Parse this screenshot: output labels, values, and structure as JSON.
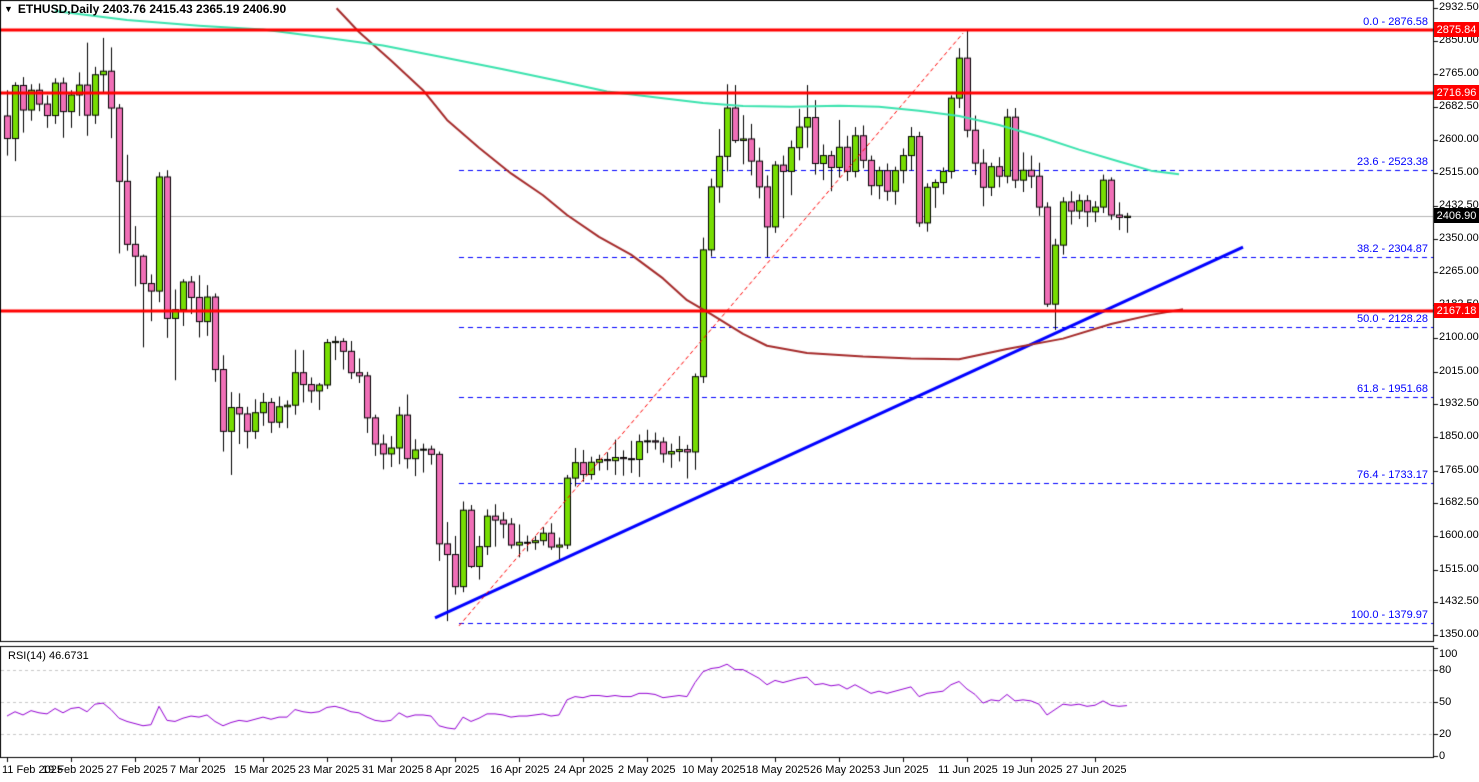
{
  "header": {
    "title": "ETHUSD,Daily 2403.76 2415.43 2365.19 2406.90",
    "symbol": "ETHUSD",
    "timeframe": "Daily"
  },
  "rsi": {
    "label": "RSI(14) 46.6731",
    "period": 14,
    "value": "46.6731"
  },
  "chart_data": {
    "type": "candlestick",
    "title": "ETHUSD,Daily",
    "ohlc_display": {
      "open": "2403.76",
      "high": "2415.43",
      "low": "2365.19",
      "close": "2406.90"
    },
    "colors": {
      "bull": "#77DD02",
      "bear": "#F06FB7",
      "outline": "#000000",
      "red_line": "#FF0000",
      "blue": "#0000FF",
      "teal_ma": "#3BE3AE",
      "darkred_ma": "#A52A2A",
      "rsi_line": "#9400D3",
      "grid": "#C8C8C8",
      "current_price_line": "#B3B3B3",
      "box_black": "#000000"
    },
    "price_axis": {
      "ticks": [
        "2932.50",
        "2850.00",
        "2765.00",
        "2682.50",
        "2600.00",
        "2515.00",
        "2432.50",
        "2350.00",
        "2265.00",
        "2182.50",
        "2100.00",
        "2015.00",
        "1932.50",
        "1850.00",
        "1765.00",
        "1682.50",
        "1600.00",
        "1515.00",
        "1432.50",
        "1350.00"
      ],
      "highlights": [
        {
          "value": "2875.84",
          "bg": "#FF0000"
        },
        {
          "value": "2716.96",
          "bg": "#FF0000"
        },
        {
          "value": "2406.90",
          "bg": "#000000"
        },
        {
          "value": "2167.18",
          "bg": "#FF0000"
        }
      ],
      "range_top": 2932.5,
      "range_bottom": 1350.0
    },
    "date_axis": {
      "labels": [
        {
          "label": "11 Feb 2025",
          "bar": 0
        },
        {
          "label": "19 Feb 2025",
          "bar": 8
        },
        {
          "label": "27 Feb 2025",
          "bar": 16
        },
        {
          "label": "7 Mar 2025",
          "bar": 24
        },
        {
          "label": "15 Mar 2025",
          "bar": 32
        },
        {
          "label": "23 Mar 2025",
          "bar": 40
        },
        {
          "label": "31 Mar 2025",
          "bar": 48
        },
        {
          "label": "8 Apr 2025",
          "bar": 56
        },
        {
          "label": "16 Apr 2025",
          "bar": 64
        },
        {
          "label": "24 Apr 2025",
          "bar": 72
        },
        {
          "label": "2 May 2025",
          "bar": 80
        },
        {
          "label": "10 May 2025",
          "bar": 88
        },
        {
          "label": "18 May 2025",
          "bar": 96
        },
        {
          "label": "26 May 2025",
          "bar": 104
        },
        {
          "label": "3 Jun 2025",
          "bar": 112
        },
        {
          "label": "11 Jun 2025",
          "bar": 120
        },
        {
          "label": "19 Jun 2025",
          "bar": 128
        },
        {
          "label": "27 Jun 2025",
          "bar": 136
        }
      ]
    },
    "horizontal_lines": [
      2875.84,
      2716.96,
      2167.18
    ],
    "current_price": 2406.9,
    "fibonacci": [
      {
        "label": "0.0 - 2876.58",
        "price": 2876.58
      },
      {
        "label": "23.6 - 2523.38",
        "price": 2523.38
      },
      {
        "label": "38.2 - 2304.87",
        "price": 2304.87
      },
      {
        "label": "50.0 - 2128.28",
        "price": 2128.28
      },
      {
        "label": "61.8 - 1951.68",
        "price": 1951.68
      },
      {
        "label": "76.4 - 1733.17",
        "price": 1733.17
      },
      {
        "label": "100.0 - 1379.97",
        "price": 1379.97
      }
    ],
    "fib_x_start_bar": 56.5,
    "trendline_blue": {
      "x1_bar": 53.5,
      "p1": 1393,
      "x2_bar": 154.5,
      "p2": 2329
    },
    "trendline_red_dashed": {
      "x1_bar": 56.5,
      "p1": 1373,
      "x2_bar": 119.5,
      "p2": 2869
    },
    "ma_teal": [
      [
        6,
        2925
      ],
      [
        15,
        2902
      ],
      [
        24,
        2888
      ],
      [
        32,
        2878
      ],
      [
        39,
        2860
      ],
      [
        47,
        2838
      ],
      [
        54,
        2810
      ],
      [
        62,
        2778
      ],
      [
        69,
        2748
      ],
      [
        75,
        2722
      ],
      [
        82,
        2705
      ],
      [
        87,
        2693
      ],
      [
        92,
        2685
      ],
      [
        98,
        2683
      ],
      [
        104,
        2686
      ],
      [
        109,
        2683
      ],
      [
        114,
        2673
      ],
      [
        119,
        2660
      ],
      [
        124,
        2637
      ],
      [
        129,
        2608
      ],
      [
        134,
        2575
      ],
      [
        139,
        2545
      ],
      [
        143,
        2522
      ],
      [
        146.5,
        2513
      ]
    ],
    "ma_darkred": [
      [
        41.2,
        2932
      ],
      [
        44,
        2872
      ],
      [
        48,
        2800
      ],
      [
        52,
        2725
      ],
      [
        55,
        2650
      ],
      [
        59,
        2580
      ],
      [
        63,
        2515
      ],
      [
        67,
        2460
      ],
      [
        70,
        2410
      ],
      [
        74,
        2355
      ],
      [
        78,
        2310
      ],
      [
        82,
        2250
      ],
      [
        85,
        2195
      ],
      [
        88,
        2160
      ],
      [
        92,
        2110
      ],
      [
        95,
        2080
      ],
      [
        100,
        2062
      ],
      [
        107,
        2053
      ],
      [
        113,
        2048
      ],
      [
        119,
        2046
      ],
      [
        125,
        2072
      ],
      [
        132,
        2098
      ],
      [
        138,
        2135
      ],
      [
        143,
        2158
      ],
      [
        147,
        2172
      ]
    ],
    "candles": [
      [
        2660,
        2725,
        2560,
        2603
      ],
      [
        2603,
        2745,
        2546,
        2737
      ],
      [
        2737,
        2758,
        2618,
        2675
      ],
      [
        2675,
        2740,
        2648,
        2725
      ],
      [
        2725,
        2742,
        2672,
        2690
      ],
      [
        2690,
        2712,
        2630,
        2661
      ],
      [
        2661,
        2755,
        2640,
        2743
      ],
      [
        2743,
        2757,
        2605,
        2671
      ],
      [
        2671,
        2725,
        2630,
        2713
      ],
      [
        2713,
        2770,
        2660,
        2738
      ],
      [
        2738,
        2845,
        2610,
        2662
      ],
      [
        2662,
        2784,
        2640,
        2764
      ],
      [
        2764,
        2857,
        2720,
        2773
      ],
      [
        2773,
        2833,
        2604,
        2680
      ],
      [
        2680,
        2690,
        2313,
        2495
      ],
      [
        2495,
        2562,
        2320,
        2336
      ],
      [
        2336,
        2382,
        2230,
        2306
      ],
      [
        2306,
        2310,
        2076,
        2237
      ],
      [
        2237,
        2260,
        2142,
        2218
      ],
      [
        2218,
        2518,
        2190,
        2506
      ],
      [
        2506,
        2523,
        2100,
        2149
      ],
      [
        2149,
        2222,
        1993,
        2171
      ],
      [
        2171,
        2248,
        2130,
        2241
      ],
      [
        2241,
        2256,
        2160,
        2202
      ],
      [
        2202,
        2258,
        2101,
        2141
      ],
      [
        2141,
        2233,
        2105,
        2203
      ],
      [
        2203,
        2212,
        1989,
        2020
      ],
      [
        2020,
        2056,
        1813,
        1864
      ],
      [
        1864,
        1963,
        1754,
        1924
      ],
      [
        1924,
        1960,
        1832,
        1908
      ],
      [
        1908,
        1926,
        1821,
        1864
      ],
      [
        1864,
        1945,
        1845,
        1911
      ],
      [
        1911,
        1961,
        1878,
        1937
      ],
      [
        1937,
        1948,
        1860,
        1887
      ],
      [
        1887,
        1952,
        1873,
        1926
      ],
      [
        1926,
        1942,
        1872,
        1930
      ],
      [
        1930,
        2070,
        1906,
        2012
      ],
      [
        2012,
        2069,
        1937,
        1982
      ],
      [
        1982,
        2000,
        1936,
        1966
      ],
      [
        1966,
        1986,
        1918,
        1981
      ],
      [
        1981,
        2097,
        1971,
        2088
      ],
      [
        2088,
        2104,
        2044,
        2091
      ],
      [
        2091,
        2099,
        2020,
        2066
      ],
      [
        2066,
        2092,
        1996,
        2012
      ],
      [
        2012,
        2048,
        1986,
        2004
      ],
      [
        2004,
        2014,
        1860,
        1898
      ],
      [
        1898,
        1906,
        1802,
        1832
      ],
      [
        1832,
        1856,
        1768,
        1807
      ],
      [
        1807,
        1852,
        1774,
        1822
      ],
      [
        1822,
        1926,
        1781,
        1905
      ],
      [
        1905,
        1957,
        1770,
        1795
      ],
      [
        1795,
        1844,
        1751,
        1817
      ],
      [
        1817,
        1833,
        1760,
        1819
      ],
      [
        1819,
        1828,
        1780,
        1806
      ],
      [
        1806,
        1813,
        1537,
        1580
      ],
      [
        1580,
        1635,
        1385,
        1553
      ],
      [
        1553,
        1600,
        1452,
        1472
      ],
      [
        1472,
        1687,
        1458,
        1665
      ],
      [
        1665,
        1678,
        1519,
        1523
      ],
      [
        1523,
        1600,
        1490,
        1573
      ],
      [
        1573,
        1667,
        1552,
        1650
      ],
      [
        1650,
        1680,
        1573,
        1640
      ],
      [
        1640,
        1660,
        1594,
        1630
      ],
      [
        1630,
        1645,
        1568,
        1577
      ],
      [
        1577,
        1629,
        1546,
        1584
      ],
      [
        1584,
        1601,
        1561,
        1583
      ],
      [
        1583,
        1600,
        1565,
        1588
      ],
      [
        1588,
        1622,
        1576,
        1607
      ],
      [
        1607,
        1632,
        1565,
        1572
      ],
      [
        1572,
        1596,
        1540,
        1577
      ],
      [
        1577,
        1754,
        1567,
        1746
      ],
      [
        1746,
        1822,
        1725,
        1785
      ],
      [
        1785,
        1817,
        1737,
        1755
      ],
      [
        1755,
        1800,
        1742,
        1786
      ],
      [
        1786,
        1805,
        1765,
        1793
      ],
      [
        1793,
        1811,
        1766,
        1790
      ],
      [
        1790,
        1843,
        1754,
        1798
      ],
      [
        1798,
        1816,
        1752,
        1795
      ],
      [
        1795,
        1840,
        1759,
        1793
      ],
      [
        1793,
        1856,
        1749,
        1838
      ],
      [
        1838,
        1868,
        1809,
        1840
      ],
      [
        1840,
        1861,
        1818,
        1837
      ],
      [
        1837,
        1849,
        1785,
        1807
      ],
      [
        1807,
        1833,
        1772,
        1813
      ],
      [
        1813,
        1852,
        1788,
        1818
      ],
      [
        1818,
        1830,
        1745,
        1812
      ],
      [
        1812,
        2010,
        1767,
        2002
      ],
      [
        2002,
        2353,
        1986,
        2322
      ],
      [
        2322,
        2502,
        2305,
        2481
      ],
      [
        2481,
        2627,
        2441,
        2558
      ],
      [
        2558,
        2740,
        2520,
        2680
      ],
      [
        2680,
        2738,
        2592,
        2598
      ],
      [
        2598,
        2662,
        2538,
        2602
      ],
      [
        2602,
        2640,
        2510,
        2546
      ],
      [
        2546,
        2580,
        2452,
        2481
      ],
      [
        2481,
        2510,
        2304,
        2380
      ],
      [
        2380,
        2546,
        2365,
        2536
      ],
      [
        2536,
        2560,
        2402,
        2520
      ],
      [
        2520,
        2598,
        2460,
        2580
      ],
      [
        2580,
        2678,
        2548,
        2632
      ],
      [
        2632,
        2738,
        2580,
        2656
      ],
      [
        2656,
        2700,
        2512,
        2540
      ],
      [
        2540,
        2588,
        2498,
        2560
      ],
      [
        2560,
        2572,
        2470,
        2530
      ],
      [
        2530,
        2650,
        2505,
        2581
      ],
      [
        2581,
        2610,
        2496,
        2520
      ],
      [
        2520,
        2632,
        2505,
        2610
      ],
      [
        2610,
        2636,
        2528,
        2548
      ],
      [
        2548,
        2560,
        2460,
        2484
      ],
      [
        2484,
        2532,
        2450,
        2522
      ],
      [
        2522,
        2540,
        2446,
        2470
      ],
      [
        2470,
        2532,
        2436,
        2522
      ],
      [
        2522,
        2578,
        2490,
        2560
      ],
      [
        2560,
        2632,
        2522,
        2608
      ],
      [
        2608,
        2620,
        2380,
        2390
      ],
      [
        2390,
        2490,
        2368,
        2480
      ],
      [
        2480,
        2500,
        2428,
        2492
      ],
      [
        2492,
        2530,
        2462,
        2520
      ],
      [
        2520,
        2712,
        2502,
        2705
      ],
      [
        2705,
        2831,
        2680,
        2806
      ],
      [
        2806,
        2876,
        2606,
        2624
      ],
      [
        2624,
        2661,
        2511,
        2541
      ],
      [
        2541,
        2576,
        2432,
        2480
      ],
      [
        2480,
        2542,
        2458,
        2532
      ],
      [
        2532,
        2556,
        2480,
        2508
      ],
      [
        2508,
        2678,
        2490,
        2657
      ],
      [
        2657,
        2680,
        2478,
        2498
      ],
      [
        2498,
        2568,
        2468,
        2523
      ],
      [
        2523,
        2560,
        2478,
        2508
      ],
      [
        2508,
        2542,
        2408,
        2430
      ],
      [
        2430,
        2442,
        2178,
        2185
      ],
      [
        2185,
        2350,
        2120,
        2334
      ],
      [
        2334,
        2455,
        2310,
        2443
      ],
      [
        2443,
        2470,
        2386,
        2420
      ],
      [
        2420,
        2462,
        2400,
        2446
      ],
      [
        2446,
        2460,
        2380,
        2418
      ],
      [
        2418,
        2445,
        2392,
        2430
      ],
      [
        2430,
        2512,
        2415,
        2498
      ],
      [
        2498,
        2505,
        2398,
        2410
      ],
      [
        2410,
        2442,
        2372,
        2404
      ],
      [
        2403.76,
        2415.43,
        2365.19,
        2406.9
      ]
    ],
    "rsi_pane": {
      "label": "RSI(14) 46.6731",
      "scale": [
        100,
        80,
        50,
        20,
        0
      ],
      "gridlines": [
        80,
        50,
        20
      ],
      "values": [
        37,
        41,
        38,
        42,
        40,
        39,
        44,
        40,
        44,
        45,
        41,
        48,
        49,
        43,
        35,
        32,
        30,
        28,
        29,
        46,
        33,
        32,
        35,
        37,
        36,
        38,
        32,
        28,
        31,
        33,
        32,
        34,
        36,
        34,
        36,
        36,
        43,
        41,
        40,
        41,
        45,
        46,
        44,
        41,
        40,
        36,
        33,
        32,
        33,
        40,
        36,
        38,
        38,
        37,
        28,
        26,
        25,
        36,
        32,
        35,
        39,
        39,
        38,
        36,
        37,
        37,
        38,
        39,
        37,
        38,
        52,
        55,
        54,
        56,
        56,
        55,
        56,
        55,
        55,
        58,
        58,
        57,
        54,
        55,
        56,
        55,
        68,
        78,
        81,
        82,
        85,
        80,
        80,
        76,
        72,
        66,
        70,
        68,
        70,
        72,
        73,
        66,
        67,
        65,
        66,
        62,
        66,
        62,
        58,
        60,
        58,
        60,
        62,
        64,
        55,
        58,
        59,
        60,
        66,
        69,
        62,
        57,
        49,
        52,
        51,
        57,
        51,
        52,
        51,
        48,
        38,
        43,
        48,
        47,
        48,
        46,
        47,
        51,
        47,
        46,
        46.67
      ]
    }
  }
}
